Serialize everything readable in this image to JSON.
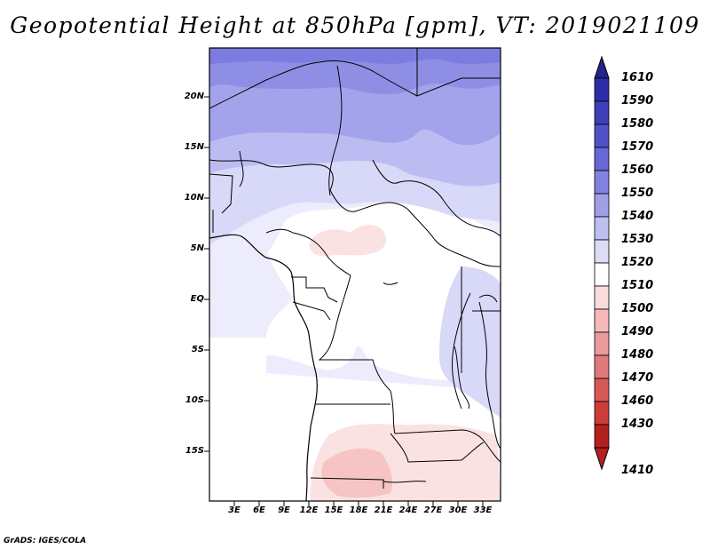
{
  "title": "Geopotential Height at 850hPa [gpm], VT: 2019021109",
  "credit": "GrADS: IGES/COLA",
  "colorbar": {
    "labels": [
      "1610",
      "1590",
      "1580",
      "1570",
      "1560",
      "1550",
      "1540",
      "1530",
      "1520",
      "1510",
      "1500",
      "1490",
      "1480",
      "1470",
      "1460",
      "1430",
      "1410"
    ],
    "colors": [
      "#23238c",
      "#2d2da8",
      "#3f3fb9",
      "#5151c8",
      "#6767d6",
      "#8282e0",
      "#9f9fe8",
      "#bebef1",
      "#dcdcf7",
      "#ffffff",
      "#fadcdc",
      "#f5b9b9",
      "#eb9b9b",
      "#e17a7a",
      "#d85858",
      "#cd3b3b",
      "#b42020"
    ]
  },
  "lat_labels": [
    "20N",
    "15N",
    "10N",
    "5N",
    "EQ",
    "5S",
    "10S",
    "15S"
  ],
  "lon_labels": [
    "3E",
    "6E",
    "9E",
    "12E",
    "15E",
    "18E",
    "21E",
    "24E",
    "27E",
    "30E",
    "33E"
  ],
  "field_colors": {
    "h1570": "#7b7be0",
    "h1560": "#8e8ee5",
    "h1550": "#a3a3ec",
    "h1540": "#bcbcf2",
    "h1530": "#d8d8f8",
    "h1520": "#ececfc",
    "h1510": "#ffffff",
    "h1500": "#fbe2e2",
    "h1490": "#f6c4c4"
  }
}
